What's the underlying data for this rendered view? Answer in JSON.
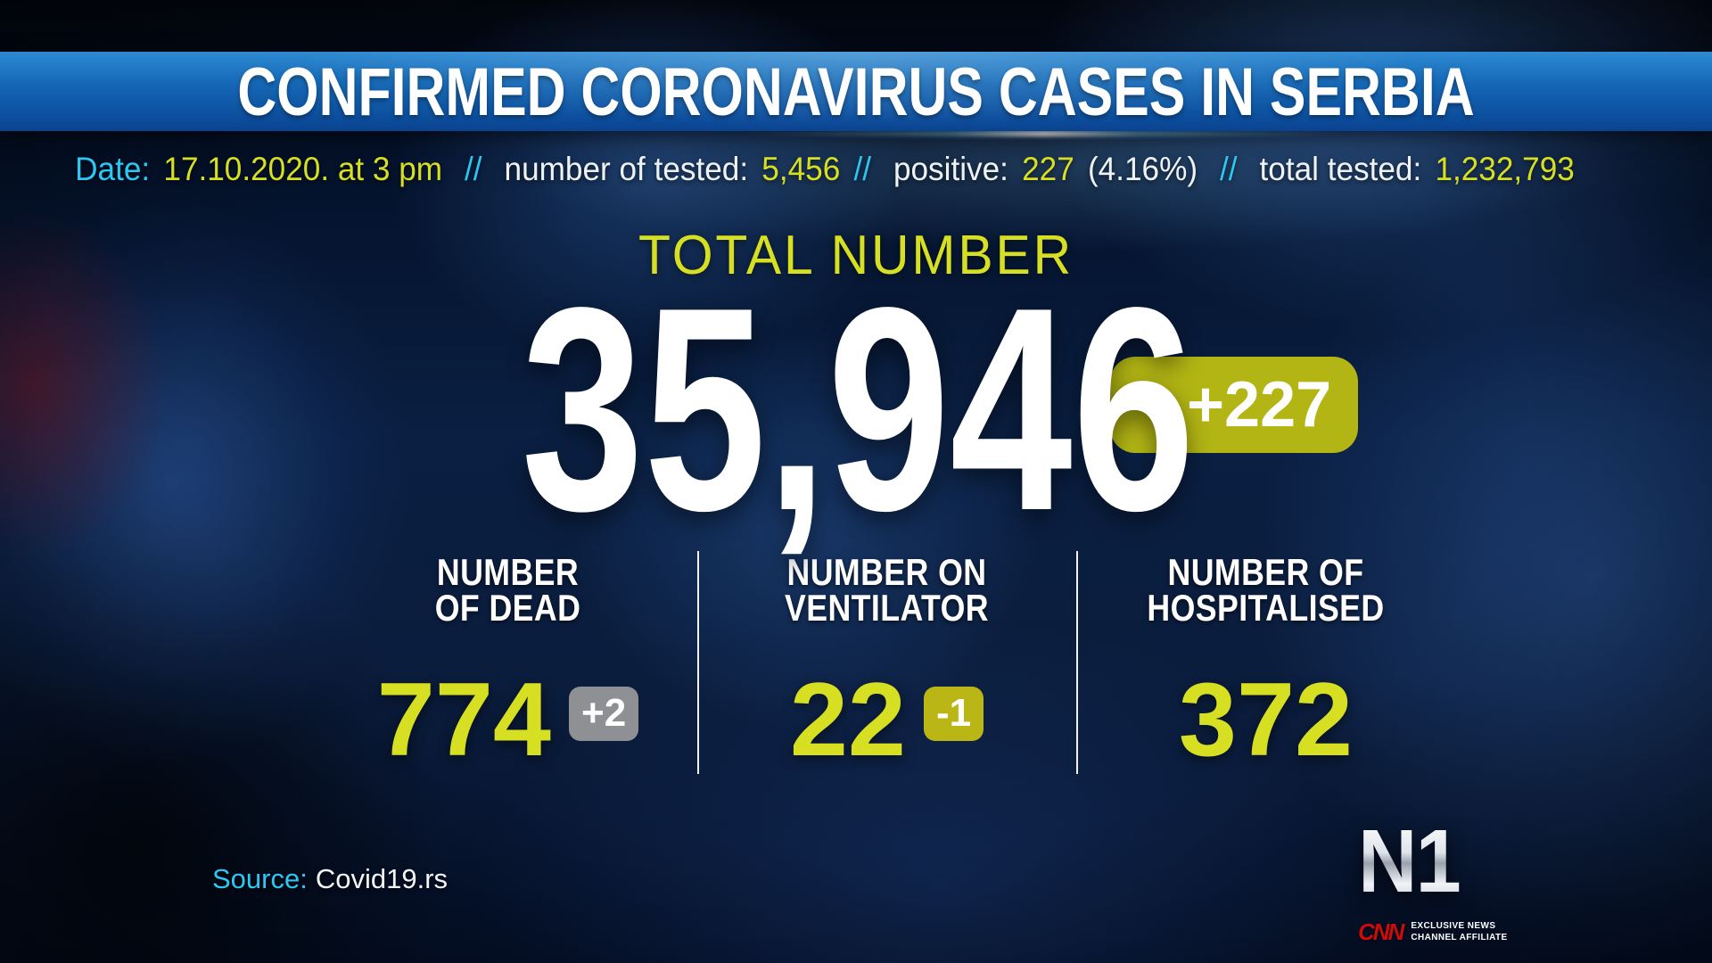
{
  "header": {
    "title": "CONFIRMED CORONAVIRUS CASES IN SERBIA"
  },
  "meta": {
    "date_label": "Date:",
    "date_value": "17.10.2020. at 3 pm",
    "sep": "//",
    "tested_label": "number of tested:",
    "tested_value": "5,456",
    "positive_label": "positive:",
    "positive_value": "227",
    "positive_pct": "(4.16%)",
    "total_tested_label": "total tested:",
    "total_tested_value": "1,232,793"
  },
  "total": {
    "heading": "TOTAL NUMBER",
    "value": "35,946",
    "delta": "+227"
  },
  "stats": [
    {
      "label_line1": "NUMBER",
      "label_line2": "OF DEAD",
      "value": "774",
      "delta": "+2"
    },
    {
      "label_line1": "NUMBER ON",
      "label_line2": "VENTILATOR",
      "value": "22",
      "delta": "-1"
    },
    {
      "label_line1": "NUMBER OF",
      "label_line2": "HOSPITALISED",
      "value": "372"
    }
  ],
  "source": {
    "label": "Source:",
    "value": "Covid19.rs"
  },
  "branding": {
    "logo": "N1",
    "affiliate_logo": "CNN",
    "affiliate_line1": "EXCLUSIVE NEWS",
    "affiliate_line2": "CHANNEL AFFILIATE"
  },
  "colors": {
    "accent_yellow": "#d7df23",
    "accent_cyan": "#2cc7f2",
    "badge_yellow": "#b2b513",
    "badge_gray": "#8e9093",
    "header_blue": "#1568b6"
  }
}
